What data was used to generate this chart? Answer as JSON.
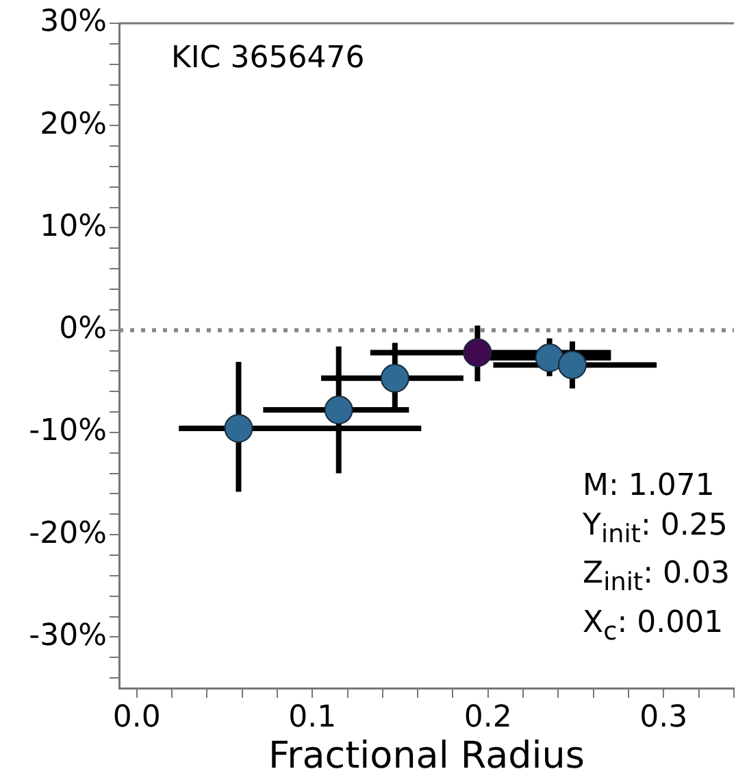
{
  "chart_data": {
    "type": "scatter",
    "xlabel": "Fractional Radius",
    "x": [
      0.058,
      0.115,
      0.147,
      0.194,
      0.235,
      0.248
    ],
    "values": [
      -9.6,
      -7.8,
      -4.7,
      -2.2,
      -2.7,
      -3.4
    ],
    "colors": [
      "#2e6a94",
      "#2e6a94",
      "#2e6a94",
      "#3f0a4f",
      "#2e6a94",
      "#2e6a94"
    ],
    "errors": [
      [
        -15.8,
        -3.1
      ],
      [
        -14.0,
        -1.6
      ],
      [
        -7.9,
        -1.25
      ],
      [
        -5.0,
        0.45
      ],
      [
        -4.5,
        -0.8
      ],
      [
        -5.7,
        -1.1
      ]
    ],
    "xerrors": [
      [
        0.024,
        0.162
      ],
      [
        0.072,
        0.155
      ],
      [
        0.105,
        0.186
      ],
      [
        0.133,
        0.27
      ],
      [
        0.2,
        0.27
      ],
      [
        0.203,
        0.296
      ]
    ],
    "marker": "circle",
    "xlim": [
      -0.01,
      0.34
    ],
    "xticks": [
      {
        "value": 0,
        "label": "0.0"
      },
      {
        "value": 0.02,
        "label": null
      },
      {
        "value": 0.04,
        "label": null
      },
      {
        "value": 0.06,
        "label": null
      },
      {
        "value": 0.08,
        "label": null
      },
      {
        "value": 0.1,
        "label": "0.1"
      },
      {
        "value": 0.12,
        "label": null
      },
      {
        "value": 0.14,
        "label": null
      },
      {
        "value": 0.16,
        "label": null
      },
      {
        "value": 0.18,
        "label": null
      },
      {
        "value": 0.2,
        "label": "0.2"
      },
      {
        "value": 0.22,
        "label": null
      },
      {
        "value": 0.24,
        "label": null
      },
      {
        "value": 0.26,
        "label": null
      },
      {
        "value": 0.28,
        "label": null
      },
      {
        "value": 0.3,
        "label": "0.3"
      },
      {
        "value": 0.32,
        "label": null
      },
      {
        "value": 0.34,
        "label": null
      }
    ],
    "ylim": [
      -35,
      30
    ],
    "yticks": [
      {
        "value": -34,
        "label": null
      },
      {
        "value": -32,
        "label": null
      },
      {
        "value": -30,
        "label": "-30%"
      },
      {
        "value": -28,
        "label": null
      },
      {
        "value": -26,
        "label": null
      },
      {
        "value": -24,
        "label": null
      },
      {
        "value": -22,
        "label": null
      },
      {
        "value": -20,
        "label": "-20%"
      },
      {
        "value": -18,
        "label": null
      },
      {
        "value": -16,
        "label": null
      },
      {
        "value": -14,
        "label": null
      },
      {
        "value": -12,
        "label": null
      },
      {
        "value": -10,
        "label": "-10%"
      },
      {
        "value": -8,
        "label": null
      },
      {
        "value": -6,
        "label": null
      },
      {
        "value": -4,
        "label": null
      },
      {
        "value": -2,
        "label": null
      },
      {
        "value": 0,
        "label": "0%"
      },
      {
        "value": 2,
        "label": null
      },
      {
        "value": 4,
        "label": null
      },
      {
        "value": 6,
        "label": null
      },
      {
        "value": 8,
        "label": null
      },
      {
        "value": 10,
        "label": "10%"
      },
      {
        "value": 12,
        "label": null
      },
      {
        "value": 14,
        "label": null
      },
      {
        "value": 16,
        "label": null
      },
      {
        "value": 18,
        "label": null
      },
      {
        "value": 20,
        "label": "20%"
      },
      {
        "value": 22,
        "label": null
      },
      {
        "value": 24,
        "label": null
      },
      {
        "value": 26,
        "label": null
      },
      {
        "value": 28,
        "label": null
      },
      {
        "value": 30,
        "label": "30%"
      }
    ],
    "ref_lines": [
      {
        "axis": "y",
        "value": 0,
        "color": "#888888",
        "line_style": "dotted"
      }
    ],
    "annotations": [
      "KIC 3656476",
      "M: 1.071",
      "Y$_{init}$: 0.25",
      "Z$_{init}$: 0.03",
      "X$_{c}$: 0.001"
    ],
    "grid": false,
    "legend": false
  }
}
